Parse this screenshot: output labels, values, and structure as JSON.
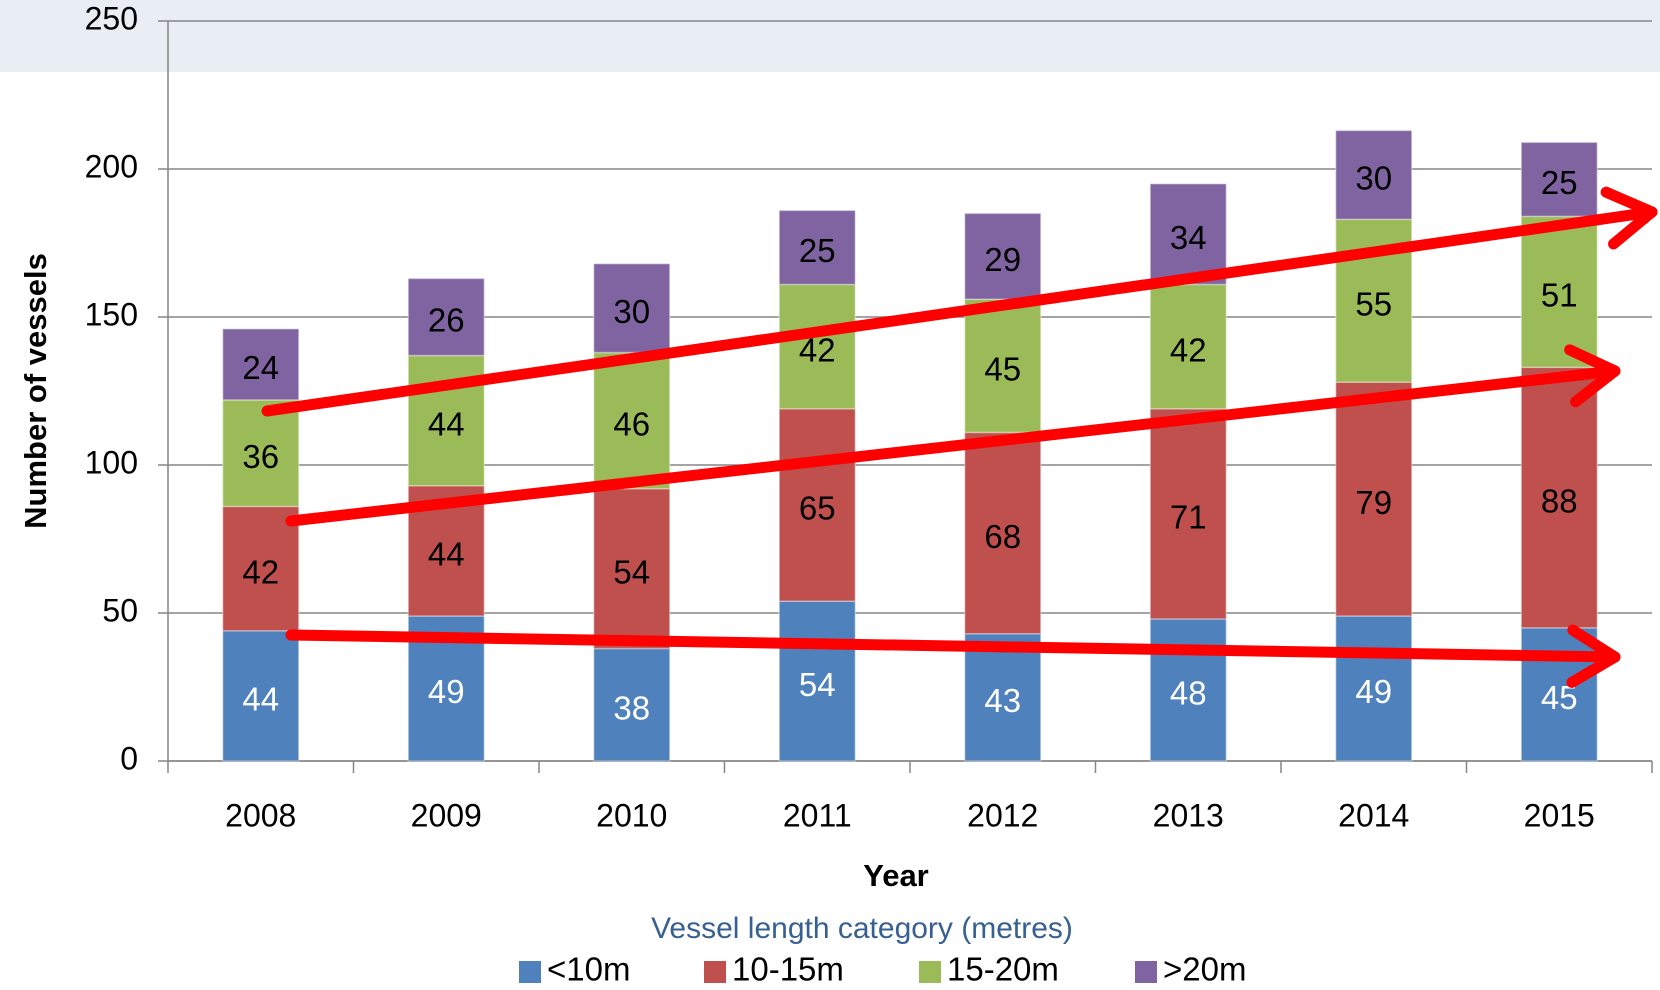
{
  "chart_data": {
    "type": "stacked_bar",
    "x_label": "Year",
    "y_label": "Number of vessels",
    "legend_title": "Vessel length category (metres)",
    "categories": [
      "2008",
      "2009",
      "2010",
      "2011",
      "2012",
      "2013",
      "2014",
      "2015"
    ],
    "series": [
      {
        "name": "<10m",
        "color": "#4f81bd",
        "values": [
          44,
          49,
          38,
          54,
          43,
          48,
          49,
          45
        ]
      },
      {
        "name": "10-15m",
        "color": "#c0504d",
        "values": [
          42,
          44,
          54,
          65,
          68,
          71,
          79,
          88
        ]
      },
      {
        "name": "15-20m",
        "color": "#9bbb59",
        "values": [
          36,
          44,
          46,
          42,
          45,
          42,
          55,
          51
        ]
      },
      {
        "name": ">20m",
        "color": "#8064a2",
        "values": [
          24,
          26,
          30,
          25,
          29,
          34,
          30,
          25
        ]
      }
    ],
    "ylim": [
      0,
      250
    ],
    "yticks": [
      0,
      50,
      100,
      150,
      200,
      250
    ],
    "grid": true,
    "legend": "bottom"
  }
}
